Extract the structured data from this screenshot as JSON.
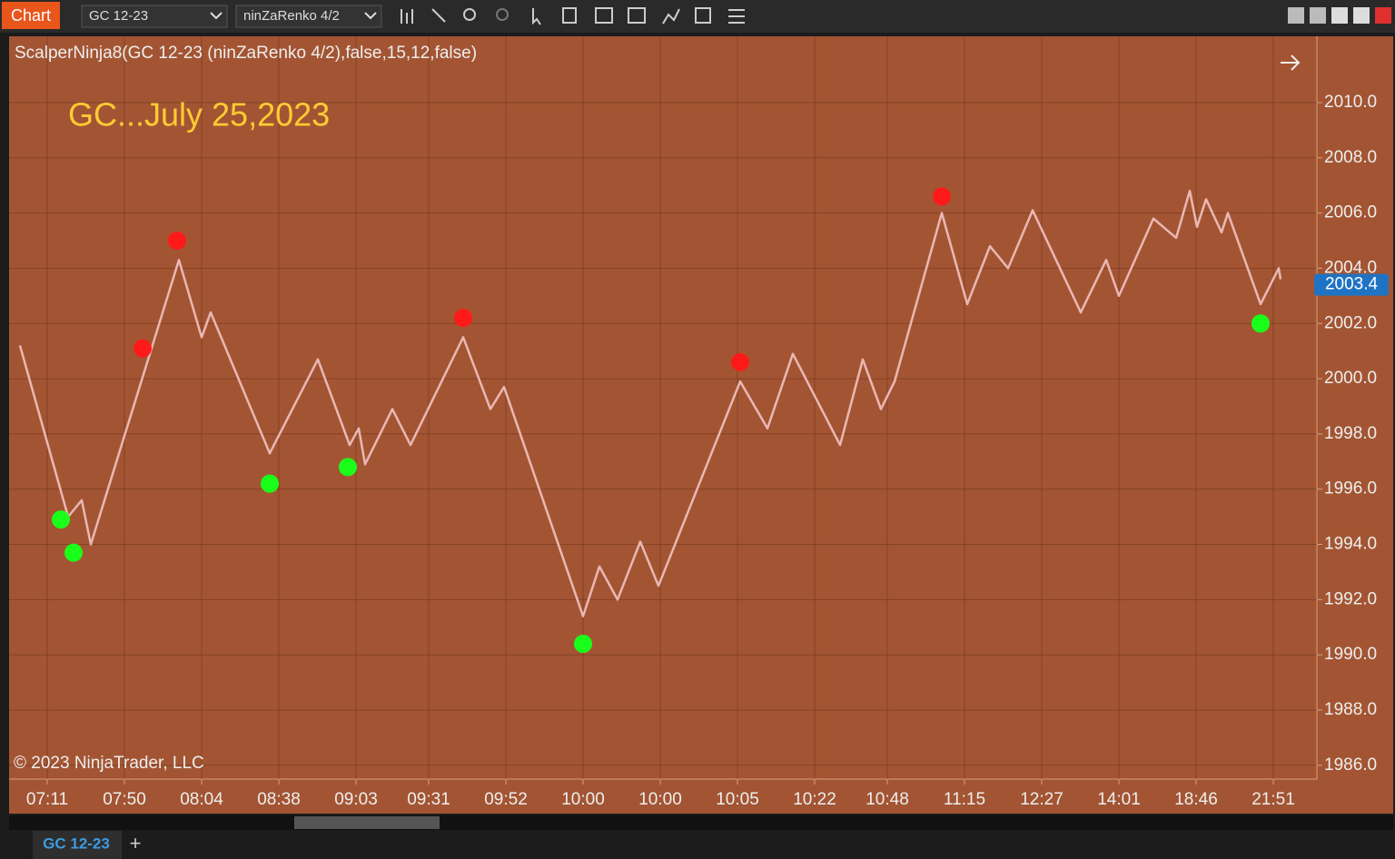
{
  "toolbar": {
    "title": "Chart",
    "instrument": "GC 12-23",
    "bar_type": "ninZaRenko 4/2"
  },
  "tabs": {
    "active": "GC 12-23",
    "add": "+"
  },
  "chart_data": {
    "type": "line",
    "title": "ScalperNinja8(GC 12-23 (ninZaRenko 4/2),false,15,12,false)",
    "annotation": "GC...July 25,2023",
    "watermark": "© 2023 NinjaTrader, LLC",
    "last_price": 2003.4,
    "xlim": [
      0,
      288
    ],
    "ylim": [
      1985.5,
      2012.4
    ],
    "grid": true,
    "xticks": [
      {
        "value": 8,
        "label": "07:11"
      },
      {
        "value": 25,
        "label": "07:50"
      },
      {
        "value": 42,
        "label": "08:04"
      },
      {
        "value": 59,
        "label": "08:38"
      },
      {
        "value": 76,
        "label": "09:03"
      },
      {
        "value": 92,
        "label": "09:31"
      },
      {
        "value": 109,
        "label": "09:52"
      },
      {
        "value": 126,
        "label": "10:00"
      },
      {
        "value": 143,
        "label": "10:00"
      },
      {
        "value": 160,
        "label": "10:05"
      },
      {
        "value": 177,
        "label": "10:22"
      },
      {
        "value": 193,
        "label": "10:48"
      },
      {
        "value": 210,
        "label": "11:15"
      },
      {
        "value": 227,
        "label": "12:27"
      },
      {
        "value": 244,
        "label": "14:01"
      },
      {
        "value": 261,
        "label": "18:46"
      },
      {
        "value": 278,
        "label": "21:51"
      }
    ],
    "yticks": [
      {
        "value": 1986,
        "label": "1986.0"
      },
      {
        "value": 1988,
        "label": "1988.0"
      },
      {
        "value": 1990,
        "label": "1990.0"
      },
      {
        "value": 1992,
        "label": "1992.0"
      },
      {
        "value": 1994,
        "label": "1994.0"
      },
      {
        "value": 1996,
        "label": "1996.0"
      },
      {
        "value": 1998,
        "label": "1998.0"
      },
      {
        "value": 2000,
        "label": "2000.0"
      },
      {
        "value": 2002,
        "label": "2002.0"
      },
      {
        "value": 2004,
        "label": "2004.0"
      },
      {
        "value": 2006,
        "label": "2006.0"
      },
      {
        "value": 2008,
        "label": "2008.0"
      },
      {
        "value": 2010,
        "label": "2010.0"
      }
    ],
    "series": [
      {
        "type": "line",
        "color": "#eab7b4",
        "x": [
          2,
          12.6,
          15.6,
          17.6,
          37,
          42,
          44,
          57,
          67.6,
          74.6,
          76.6,
          78,
          84,
          88,
          99.6,
          105.6,
          108.6,
          126,
          129.6,
          133.6,
          138.6,
          142.6,
          160.6,
          166.6,
          172.2,
          182.6,
          187.6,
          191.6,
          194.6,
          205,
          210.6,
          215.6,
          219.6,
          225,
          235.6,
          241.2,
          244,
          251.6,
          256.6,
          259.6,
          261.2,
          263.2,
          266.6,
          268,
          275.2,
          279.2,
          279.6
        ],
        "values": [
          2001.2,
          1995.0,
          1995.6,
          1994.0,
          2004.3,
          2001.5,
          2002.4,
          1997.3,
          2000.7,
          1997.6,
          1998.2,
          1996.9,
          1998.9,
          1997.6,
          2001.5,
          1998.9,
          1999.7,
          1991.4,
          1993.2,
          1992.0,
          1994.1,
          1992.5,
          1999.9,
          1998.2,
          2000.9,
          1997.6,
          2000.7,
          1998.9,
          1999.9,
          2006.0,
          2002.7,
          2004.8,
          2004.0,
          2006.1,
          2002.4,
          2004.3,
          2003.0,
          2005.8,
          2005.1,
          2006.8,
          2005.5,
          2006.5,
          2005.3,
          2006.0,
          2002.7,
          2004.0,
          2003.6
        ]
      },
      {
        "type": "scatter",
        "color": "#ff1a1a",
        "x": [
          29,
          36.6,
          99.6,
          160.6,
          205
        ],
        "values": [
          2001.1,
          2005.0,
          2002.2,
          2000.6,
          2006.6
        ]
      },
      {
        "type": "scatter",
        "color": "#1aff1a",
        "x": [
          11,
          13.8,
          57,
          74.2,
          126,
          275.2
        ],
        "values": [
          1994.9,
          1993.7,
          1996.2,
          1996.8,
          1990.4,
          2002.0
        ]
      }
    ]
  }
}
